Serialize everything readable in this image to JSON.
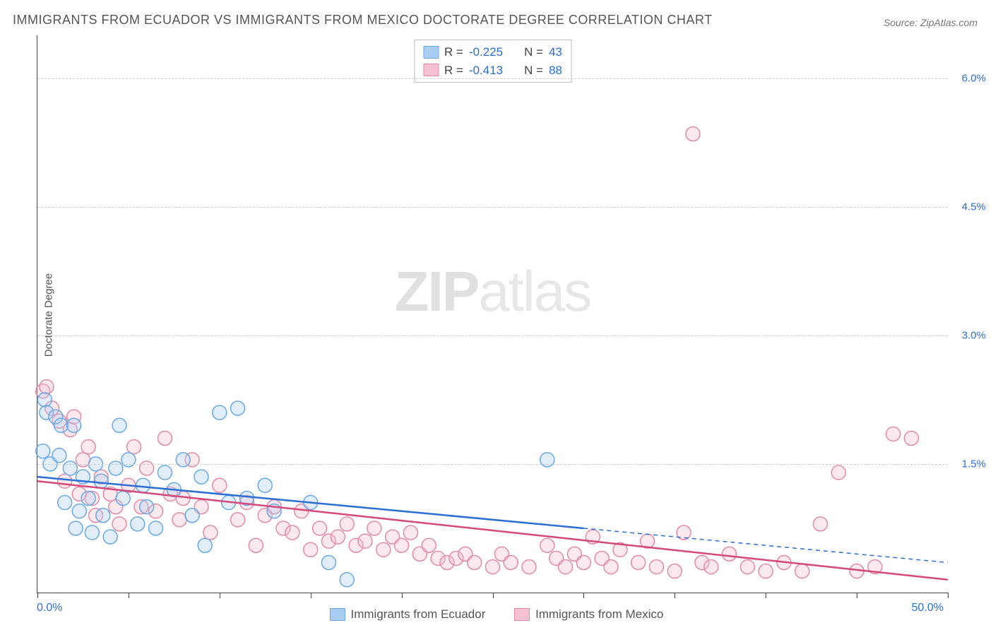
{
  "title": "IMMIGRANTS FROM ECUADOR VS IMMIGRANTS FROM MEXICO DOCTORATE DEGREE CORRELATION CHART",
  "source_label": "Source: ZipAtlas.com",
  "ylabel": "Doctorate Degree",
  "watermark": {
    "bold": "ZIP",
    "light": "atlas"
  },
  "chart": {
    "type": "scatter-with-regression",
    "background_color": "#ffffff",
    "grid_color": "#cccccc",
    "axis_color": "#444444",
    "tick_label_color": "#2b6fd6",
    "xlim": [
      0,
      50
    ],
    "ylim": [
      0,
      6.5
    ],
    "ytick_positions": [
      1.5,
      3.0,
      4.5,
      6.0
    ],
    "ytick_labels": [
      "1.5%",
      "3.0%",
      "4.5%",
      "6.0%"
    ],
    "xtick_positions": [
      0,
      5,
      10,
      15,
      20,
      25,
      30,
      35,
      40,
      45,
      50
    ],
    "xaxis_end_labels": {
      "left": "0.0%",
      "right": "50.0%"
    },
    "marker_radius": 10,
    "marker_stroke_width": 1.5,
    "marker_fill_opacity": 0.35,
    "regression_line_width": 2.5
  },
  "legend_stats": {
    "rows": [
      {
        "series": "ecuador",
        "r_label": "R =",
        "r_value": "-0.225",
        "n_label": "N =",
        "n_value": "43"
      },
      {
        "series": "mexico",
        "r_label": "R =",
        "r_value": "-0.413",
        "n_label": "N =",
        "n_value": "88"
      }
    ]
  },
  "series": {
    "ecuador": {
      "label": "Immigrants from Ecuador",
      "color_stroke": "#6aa8e8",
      "color_fill": "#a9cdf2",
      "regression": {
        "x1": 0,
        "y1": 1.35,
        "x2": 30,
        "y2": 0.75,
        "ext_x2": 50,
        "ext_y2": 0.35
      },
      "points": [
        [
          0.3,
          1.65
        ],
        [
          0.4,
          2.25
        ],
        [
          0.5,
          2.1
        ],
        [
          0.7,
          1.5
        ],
        [
          1.0,
          2.05
        ],
        [
          1.2,
          1.6
        ],
        [
          1.3,
          1.95
        ],
        [
          1.5,
          1.05
        ],
        [
          1.8,
          1.45
        ],
        [
          2.0,
          1.95
        ],
        [
          2.1,
          0.75
        ],
        [
          2.3,
          0.95
        ],
        [
          2.5,
          1.35
        ],
        [
          2.8,
          1.1
        ],
        [
          3.0,
          0.7
        ],
        [
          3.2,
          1.5
        ],
        [
          3.5,
          1.3
        ],
        [
          3.6,
          0.9
        ],
        [
          4.0,
          0.65
        ],
        [
          4.3,
          1.45
        ],
        [
          4.5,
          1.95
        ],
        [
          4.7,
          1.1
        ],
        [
          5.0,
          1.55
        ],
        [
          5.5,
          0.8
        ],
        [
          5.8,
          1.25
        ],
        [
          6.0,
          1.0
        ],
        [
          6.5,
          0.75
        ],
        [
          7.0,
          1.4
        ],
        [
          7.5,
          1.2
        ],
        [
          8.0,
          1.55
        ],
        [
          8.5,
          0.9
        ],
        [
          9.0,
          1.35
        ],
        [
          9.2,
          0.55
        ],
        [
          10.0,
          2.1
        ],
        [
          10.5,
          1.05
        ],
        [
          11.0,
          2.15
        ],
        [
          11.5,
          1.1
        ],
        [
          12.5,
          1.25
        ],
        [
          13.0,
          0.95
        ],
        [
          15.0,
          1.05
        ],
        [
          16.0,
          0.35
        ],
        [
          17.0,
          0.15
        ],
        [
          28.0,
          1.55
        ]
      ]
    },
    "mexico": {
      "label": "Immigrants from Mexico",
      "color_stroke": "#e48aa5",
      "color_fill": "#f5c0cf",
      "regression": {
        "x1": 0,
        "y1": 1.3,
        "x2": 50,
        "y2": 0.15
      },
      "points": [
        [
          0.3,
          2.35
        ],
        [
          0.5,
          2.4
        ],
        [
          0.8,
          2.15
        ],
        [
          1.2,
          2.0
        ],
        [
          1.5,
          1.3
        ],
        [
          1.8,
          1.9
        ],
        [
          2.0,
          2.05
        ],
        [
          2.3,
          1.15
        ],
        [
          2.5,
          1.55
        ],
        [
          2.8,
          1.7
        ],
        [
          3.0,
          1.1
        ],
        [
          3.2,
          0.9
        ],
        [
          3.5,
          1.35
        ],
        [
          4.0,
          1.15
        ],
        [
          4.3,
          1.0
        ],
        [
          4.5,
          0.8
        ],
        [
          5.0,
          1.25
        ],
        [
          5.3,
          1.7
        ],
        [
          5.7,
          1.0
        ],
        [
          6.0,
          1.45
        ],
        [
          6.5,
          0.95
        ],
        [
          7.0,
          1.8
        ],
        [
          7.3,
          1.15
        ],
        [
          7.8,
          0.85
        ],
        [
          8.0,
          1.1
        ],
        [
          8.5,
          1.55
        ],
        [
          9.0,
          1.0
        ],
        [
          9.5,
          0.7
        ],
        [
          10.0,
          1.25
        ],
        [
          11.0,
          0.85
        ],
        [
          11.5,
          1.05
        ],
        [
          12.0,
          0.55
        ],
        [
          12.5,
          0.9
        ],
        [
          13.0,
          1.0
        ],
        [
          13.5,
          0.75
        ],
        [
          14.0,
          0.7
        ],
        [
          14.5,
          0.95
        ],
        [
          15.0,
          0.5
        ],
        [
          15.5,
          0.75
        ],
        [
          16.0,
          0.6
        ],
        [
          16.5,
          0.65
        ],
        [
          17.0,
          0.8
        ],
        [
          17.5,
          0.55
        ],
        [
          18.0,
          0.6
        ],
        [
          18.5,
          0.75
        ],
        [
          19.0,
          0.5
        ],
        [
          19.5,
          0.65
        ],
        [
          20.0,
          0.55
        ],
        [
          20.5,
          0.7
        ],
        [
          21.0,
          0.45
        ],
        [
          21.5,
          0.55
        ],
        [
          22.0,
          0.4
        ],
        [
          22.5,
          0.35
        ],
        [
          23.0,
          0.4
        ],
        [
          23.5,
          0.45
        ],
        [
          24.0,
          0.35
        ],
        [
          25.0,
          0.3
        ],
        [
          25.5,
          0.45
        ],
        [
          26.0,
          0.35
        ],
        [
          27.0,
          0.3
        ],
        [
          28.0,
          0.55
        ],
        [
          28.5,
          0.4
        ],
        [
          29.0,
          0.3
        ],
        [
          29.5,
          0.45
        ],
        [
          30.0,
          0.35
        ],
        [
          30.5,
          0.65
        ],
        [
          31.0,
          0.4
        ],
        [
          31.5,
          0.3
        ],
        [
          32.0,
          0.5
        ],
        [
          33.0,
          0.35
        ],
        [
          33.5,
          0.6
        ],
        [
          34.0,
          0.3
        ],
        [
          35.0,
          0.25
        ],
        [
          35.5,
          0.7
        ],
        [
          36.0,
          5.35
        ],
        [
          36.5,
          0.35
        ],
        [
          37.0,
          0.3
        ],
        [
          38.0,
          0.45
        ],
        [
          39.0,
          0.3
        ],
        [
          40.0,
          0.25
        ],
        [
          41.0,
          0.35
        ],
        [
          42.0,
          0.25
        ],
        [
          43.0,
          0.8
        ],
        [
          44.0,
          1.4
        ],
        [
          45.0,
          0.25
        ],
        [
          46.0,
          0.3
        ],
        [
          47.0,
          1.85
        ],
        [
          48.0,
          1.8
        ]
      ]
    }
  },
  "bottom_legend": [
    {
      "series": "ecuador"
    },
    {
      "series": "mexico"
    }
  ]
}
